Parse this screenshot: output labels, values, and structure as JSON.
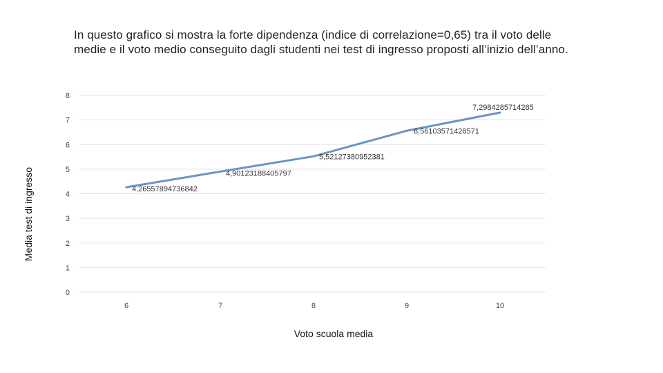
{
  "caption": "In questo grafico si mostra la forte dipendenza (indice di correlazione=0,65) tra il voto delle medie e il voto medio conseguito dagli studenti nei test di ingresso proposti all’inizio dell’anno.",
  "chart_data": {
    "type": "line",
    "title": "",
    "xlabel": "Voto scuola media",
    "ylabel": "Media test di ingresso",
    "categories": [
      "6",
      "7",
      "8",
      "9",
      "10"
    ],
    "ylim": [
      0,
      8
    ],
    "yticks": [
      "0",
      "1",
      "2",
      "3",
      "4",
      "5",
      "6",
      "7",
      "8"
    ],
    "grid": "horizontal",
    "series": [
      {
        "values": [
          4.26557894736842,
          4.90123188405797,
          5.52127380952381,
          6.56103571428571,
          7.2984285714285
        ],
        "labels": [
          "4,26557894736842",
          "4,90123188405797",
          "5,52127380952381",
          "6,56103571428571",
          "7,2984285714285"
        ]
      }
    ],
    "line_color": "#6a95c2"
  }
}
